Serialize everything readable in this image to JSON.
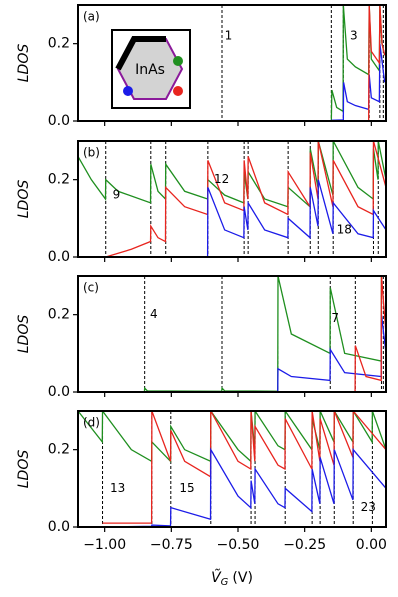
{
  "chart_data": [
    {
      "type": "line",
      "panel_label": "(a)",
      "ylabel": "LDOS",
      "inset_label": "InAs",
      "xlim": [
        -1.1,
        0.055
      ],
      "ylim": [
        0,
        0.3
      ],
      "xticks": [
        -1,
        -0.75,
        -0.5,
        -0.25,
        0
      ],
      "yticks": [
        {
          "value": 0,
          "label": "0.0"
        },
        {
          "value": 0.2,
          "label": "0.2"
        }
      ],
      "levels": [
        -0.56,
        -0.15,
        -0.105,
        -0.008,
        0.032,
        0.045
      ],
      "annotations": [
        "1",
        "3"
      ],
      "series": [
        {
          "color": "#1f8f1f",
          "x": [
            -0.15,
            -0.148,
            -0.13,
            -0.106,
            -0.105,
            -0.09,
            -0.06,
            -0.01,
            -0.008,
            0.0,
            0.03,
            0.032,
            0.04,
            0.05
          ],
          "values": [
            0,
            0.08,
            0.035,
            0.025,
            0.3,
            0.16,
            0.14,
            0.12,
            0.3,
            0.16,
            0.13,
            0.3,
            0.2,
            0.17
          ]
        },
        {
          "color": "#1c1ce8",
          "x": [
            -0.15,
            -0.105,
            -0.104,
            -0.09,
            -0.06,
            -0.01,
            -0.008,
            0.0,
            0.03,
            0.032,
            0.05
          ],
          "values": [
            0.002,
            0.003,
            0.1,
            0.05,
            0.04,
            0.03,
            0.12,
            0.06,
            0.05,
            0.2,
            0.1
          ]
        },
        {
          "color": "#e8251f",
          "x": [
            -0.01,
            -0.008,
            0.0,
            0.03,
            0.032,
            0.04,
            0.05
          ],
          "values": [
            0,
            0.3,
            0.18,
            0.15,
            0.3,
            0.2,
            0.17
          ]
        }
      ]
    },
    {
      "type": "line",
      "panel_label": "(b)",
      "ylabel": "LDOS",
      "xlim": [
        -1.1,
        0.055
      ],
      "ylim": [
        0,
        0.3
      ],
      "xticks": [
        -1,
        -0.75,
        -0.5,
        -0.25,
        0
      ],
      "yticks": [
        {
          "value": 0,
          "label": "0.0"
        },
        {
          "value": 0.2,
          "label": "0.2"
        }
      ],
      "levels": [
        -0.996,
        -0.827,
        -0.771,
        -0.613,
        -0.477,
        -0.462,
        -0.312,
        -0.229,
        -0.199,
        -0.143,
        0.008,
        0.026
      ],
      "annotations": [
        "9",
        "12",
        "18"
      ],
      "series": [
        {
          "color": "#1f8f1f",
          "x": [
            -1.1,
            -1.05,
            -0.997,
            -0.996,
            -0.95,
            -0.828,
            -0.827,
            -0.8,
            -0.772,
            -0.771,
            -0.7,
            -0.614,
            -0.613,
            -0.55,
            -0.478,
            -0.477,
            -0.463,
            -0.462,
            -0.4,
            -0.313,
            -0.312,
            -0.23,
            -0.229,
            -0.2,
            -0.199,
            -0.144,
            -0.143,
            -0.05,
            0.007,
            0.008,
            0.025,
            0.026,
            0.055
          ],
          "values": [
            0.26,
            0.2,
            0.15,
            0.2,
            0.17,
            0.14,
            0.24,
            0.17,
            0.15,
            0.24,
            0.17,
            0.15,
            0.2,
            0.16,
            0.14,
            0.22,
            0.15,
            0.22,
            0.15,
            0.13,
            0.18,
            0.13,
            0.28,
            0.18,
            0.3,
            0.16,
            0.3,
            0.18,
            0.15,
            0.28,
            0.2,
            0.3,
            0.2
          ]
        },
        {
          "color": "#e8251f",
          "x": [
            -0.996,
            -0.9,
            -0.828,
            -0.827,
            -0.8,
            -0.772,
            -0.771,
            -0.7,
            -0.614,
            -0.613,
            -0.55,
            -0.478,
            -0.477,
            -0.463,
            -0.462,
            -0.4,
            -0.313,
            -0.312,
            -0.23,
            -0.229,
            -0.2,
            -0.199,
            -0.144,
            -0.143,
            -0.05,
            0.007,
            0.008,
            0.055
          ],
          "values": [
            0,
            0.02,
            0.04,
            0.08,
            0.05,
            0.04,
            0.18,
            0.13,
            0.11,
            0.25,
            0.14,
            0.12,
            0.25,
            0.15,
            0.26,
            0.14,
            0.11,
            0.22,
            0.13,
            0.27,
            0.15,
            0.3,
            0.13,
            0.25,
            0.13,
            0.11,
            0.3,
            0.18
          ]
        },
        {
          "color": "#1c1ce8",
          "x": [
            -0.614,
            -0.613,
            -0.55,
            -0.478,
            -0.477,
            -0.463,
            -0.462,
            -0.4,
            -0.313,
            -0.312,
            -0.23,
            -0.229,
            -0.2,
            -0.199,
            -0.144,
            -0.143,
            -0.05,
            0.007,
            0.008,
            0.055
          ],
          "values": [
            0,
            0.18,
            0.07,
            0.05,
            0.13,
            0.07,
            0.14,
            0.07,
            0.05,
            0.1,
            0.05,
            0.18,
            0.08,
            0.2,
            0.06,
            0.14,
            0.06,
            0.05,
            0.12,
            0.07
          ]
        }
      ]
    },
    {
      "type": "line",
      "panel_label": "(c)",
      "ylabel": "LDOS",
      "xlim": [
        -1.1,
        0.055
      ],
      "ylim": [
        0,
        0.3
      ],
      "xticks": [
        -1,
        -0.75,
        -0.5,
        -0.25,
        0
      ],
      "yticks": [
        {
          "value": 0,
          "label": "0.0"
        },
        {
          "value": 0.2,
          "label": "0.2"
        }
      ],
      "levels": [
        -0.85,
        -0.56,
        -0.35,
        -0.154,
        -0.06,
        0.038,
        0.045
      ],
      "annotations": [
        "4",
        "7"
      ],
      "series": [
        {
          "color": "#1f8f1f",
          "x": [
            -1.1,
            -0.851,
            -0.85,
            -0.84,
            -0.561,
            -0.56,
            -0.55,
            -0.351,
            -0.35,
            -0.3,
            -0.155,
            -0.154,
            -0.1,
            0.037,
            0.038,
            0.055
          ],
          "values": [
            0,
            0,
            0.01,
            0.003,
            0.002,
            0.01,
            0.003,
            0.002,
            0.3,
            0.15,
            0.1,
            0.27,
            0.1,
            0.08,
            0.3,
            0.3
          ]
        },
        {
          "color": "#1c1ce8",
          "x": [
            -0.351,
            -0.35,
            -0.3,
            -0.155,
            -0.154,
            -0.1,
            0.037,
            0.038,
            0.055
          ],
          "values": [
            0,
            0.06,
            0.04,
            0.03,
            0.11,
            0.05,
            0.04,
            0.2,
            0.1
          ]
        },
        {
          "color": "#e8251f",
          "x": [
            -0.061,
            -0.06,
            -0.02,
            0.037,
            0.038,
            0.055
          ],
          "values": [
            0,
            0.12,
            0.04,
            0.03,
            0.3,
            0.15
          ]
        }
      ]
    },
    {
      "type": "line",
      "panel_label": "(d)",
      "ylabel": "LDOS",
      "xlabel": {
        "symbol": "Ṽ",
        "subscript": "G",
        "unit": "(V)"
      },
      "xlim": [
        -1.1,
        0.055
      ],
      "ylim": [
        0,
        0.3
      ],
      "xticks": [
        {
          "value": -1,
          "label": "−1.00"
        },
        {
          "value": -0.75,
          "label": "−0.75"
        },
        {
          "value": -0.5,
          "label": "−0.50"
        },
        {
          "value": -0.25,
          "label": "−0.25"
        },
        {
          "value": 0,
          "label": "0.00"
        }
      ],
      "yticks": [
        {
          "value": 0,
          "label": "0.0"
        },
        {
          "value": 0.2,
          "label": "0.2"
        }
      ],
      "levels": [
        -1.008,
        -0.823,
        -0.752,
        -0.602,
        -0.451,
        -0.436,
        -0.323,
        -0.222,
        -0.192,
        -0.139,
        -0.068,
        0.004
      ],
      "annotations": [
        "13",
        "15",
        "23"
      ],
      "series": [
        {
          "color": "#1f8f1f",
          "x": [
            -1.1,
            -1.009,
            -1.008,
            -0.9,
            -0.824,
            -0.823,
            -0.753,
            -0.752,
            -0.7,
            -0.603,
            -0.602,
            -0.5,
            -0.452,
            -0.451,
            -0.437,
            -0.436,
            -0.35,
            -0.324,
            -0.323,
            -0.223,
            -0.222,
            -0.193,
            -0.192,
            -0.14,
            -0.139,
            -0.069,
            -0.068,
            0.003,
            0.004,
            0.055
          ],
          "values": [
            0.3,
            0.22,
            0.3,
            0.2,
            0.17,
            0.22,
            0.17,
            0.26,
            0.2,
            0.17,
            0.3,
            0.2,
            0.17,
            0.3,
            0.2,
            0.3,
            0.21,
            0.2,
            0.3,
            0.2,
            0.28,
            0.2,
            0.3,
            0.22,
            0.3,
            0.22,
            0.3,
            0.22,
            0.3,
            0.2
          ]
        },
        {
          "color": "#e8251f",
          "x": [
            -1.008,
            -0.9,
            -0.824,
            -0.823,
            -0.753,
            -0.752,
            -0.7,
            -0.603,
            -0.602,
            -0.5,
            -0.452,
            -0.451,
            -0.437,
            -0.436,
            -0.35,
            -0.324,
            -0.323,
            -0.223,
            -0.222,
            -0.193,
            -0.192,
            -0.14,
            -0.139,
            -0.069,
            -0.068,
            0.055
          ],
          "values": [
            0.01,
            0.01,
            0.01,
            0.3,
            0.17,
            0.25,
            0.17,
            0.13,
            0.3,
            0.17,
            0.15,
            0.3,
            0.17,
            0.26,
            0.16,
            0.15,
            0.28,
            0.15,
            0.3,
            0.17,
            0.28,
            0.16,
            0.3,
            0.18,
            0.3,
            0.2
          ]
        },
        {
          "color": "#1c1ce8",
          "x": [
            -1.008,
            -0.824,
            -0.823,
            -0.753,
            -0.752,
            -0.603,
            -0.602,
            -0.5,
            -0.452,
            -0.451,
            -0.437,
            -0.436,
            -0.35,
            -0.324,
            -0.323,
            -0.223,
            -0.222,
            -0.193,
            -0.192,
            -0.14,
            -0.139,
            -0.069,
            -0.068,
            0.055
          ],
          "values": [
            0,
            0.002,
            0.005,
            0.003,
            0.05,
            0.02,
            0.2,
            0.08,
            0.05,
            0.12,
            0.06,
            0.15,
            0.06,
            0.05,
            0.1,
            0.04,
            0.15,
            0.06,
            0.18,
            0.06,
            0.2,
            0.07,
            0.2,
            0.1
          ]
        }
      ]
    }
  ]
}
